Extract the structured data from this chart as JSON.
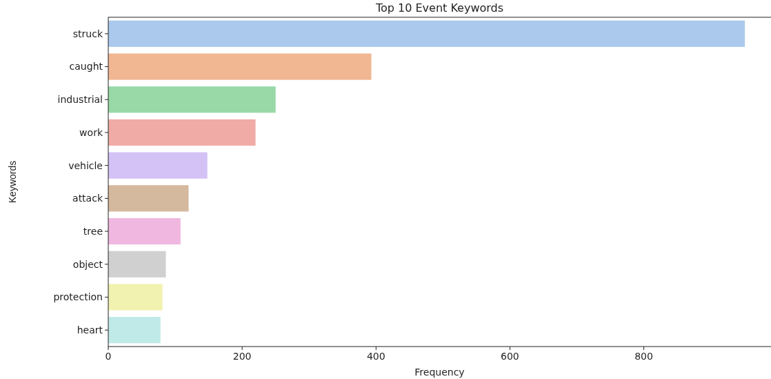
{
  "chart_data": {
    "type": "bar",
    "orientation": "horizontal",
    "title": "Top 10 Event Keywords",
    "xlabel": "Frequency",
    "ylabel": "Keywords",
    "categories": [
      "struck",
      "caught",
      "industrial",
      "work",
      "vehicle",
      "attack",
      "tree",
      "object",
      "protection",
      "heart"
    ],
    "values": [
      951,
      393,
      250,
      220,
      148,
      120,
      108,
      86,
      81,
      78
    ],
    "colors": [
      "#abc9ec",
      "#f1b792",
      "#98d9a7",
      "#f1aba7",
      "#d4c2f7",
      "#d5b99f",
      "#f0b7e0",
      "#d0d0d0",
      "#f2f2b0",
      "#c0eae8"
    ],
    "xlim": [
      0,
      990
    ],
    "xticks": [
      0,
      200,
      400,
      600,
      800
    ],
    "grid": false
  }
}
